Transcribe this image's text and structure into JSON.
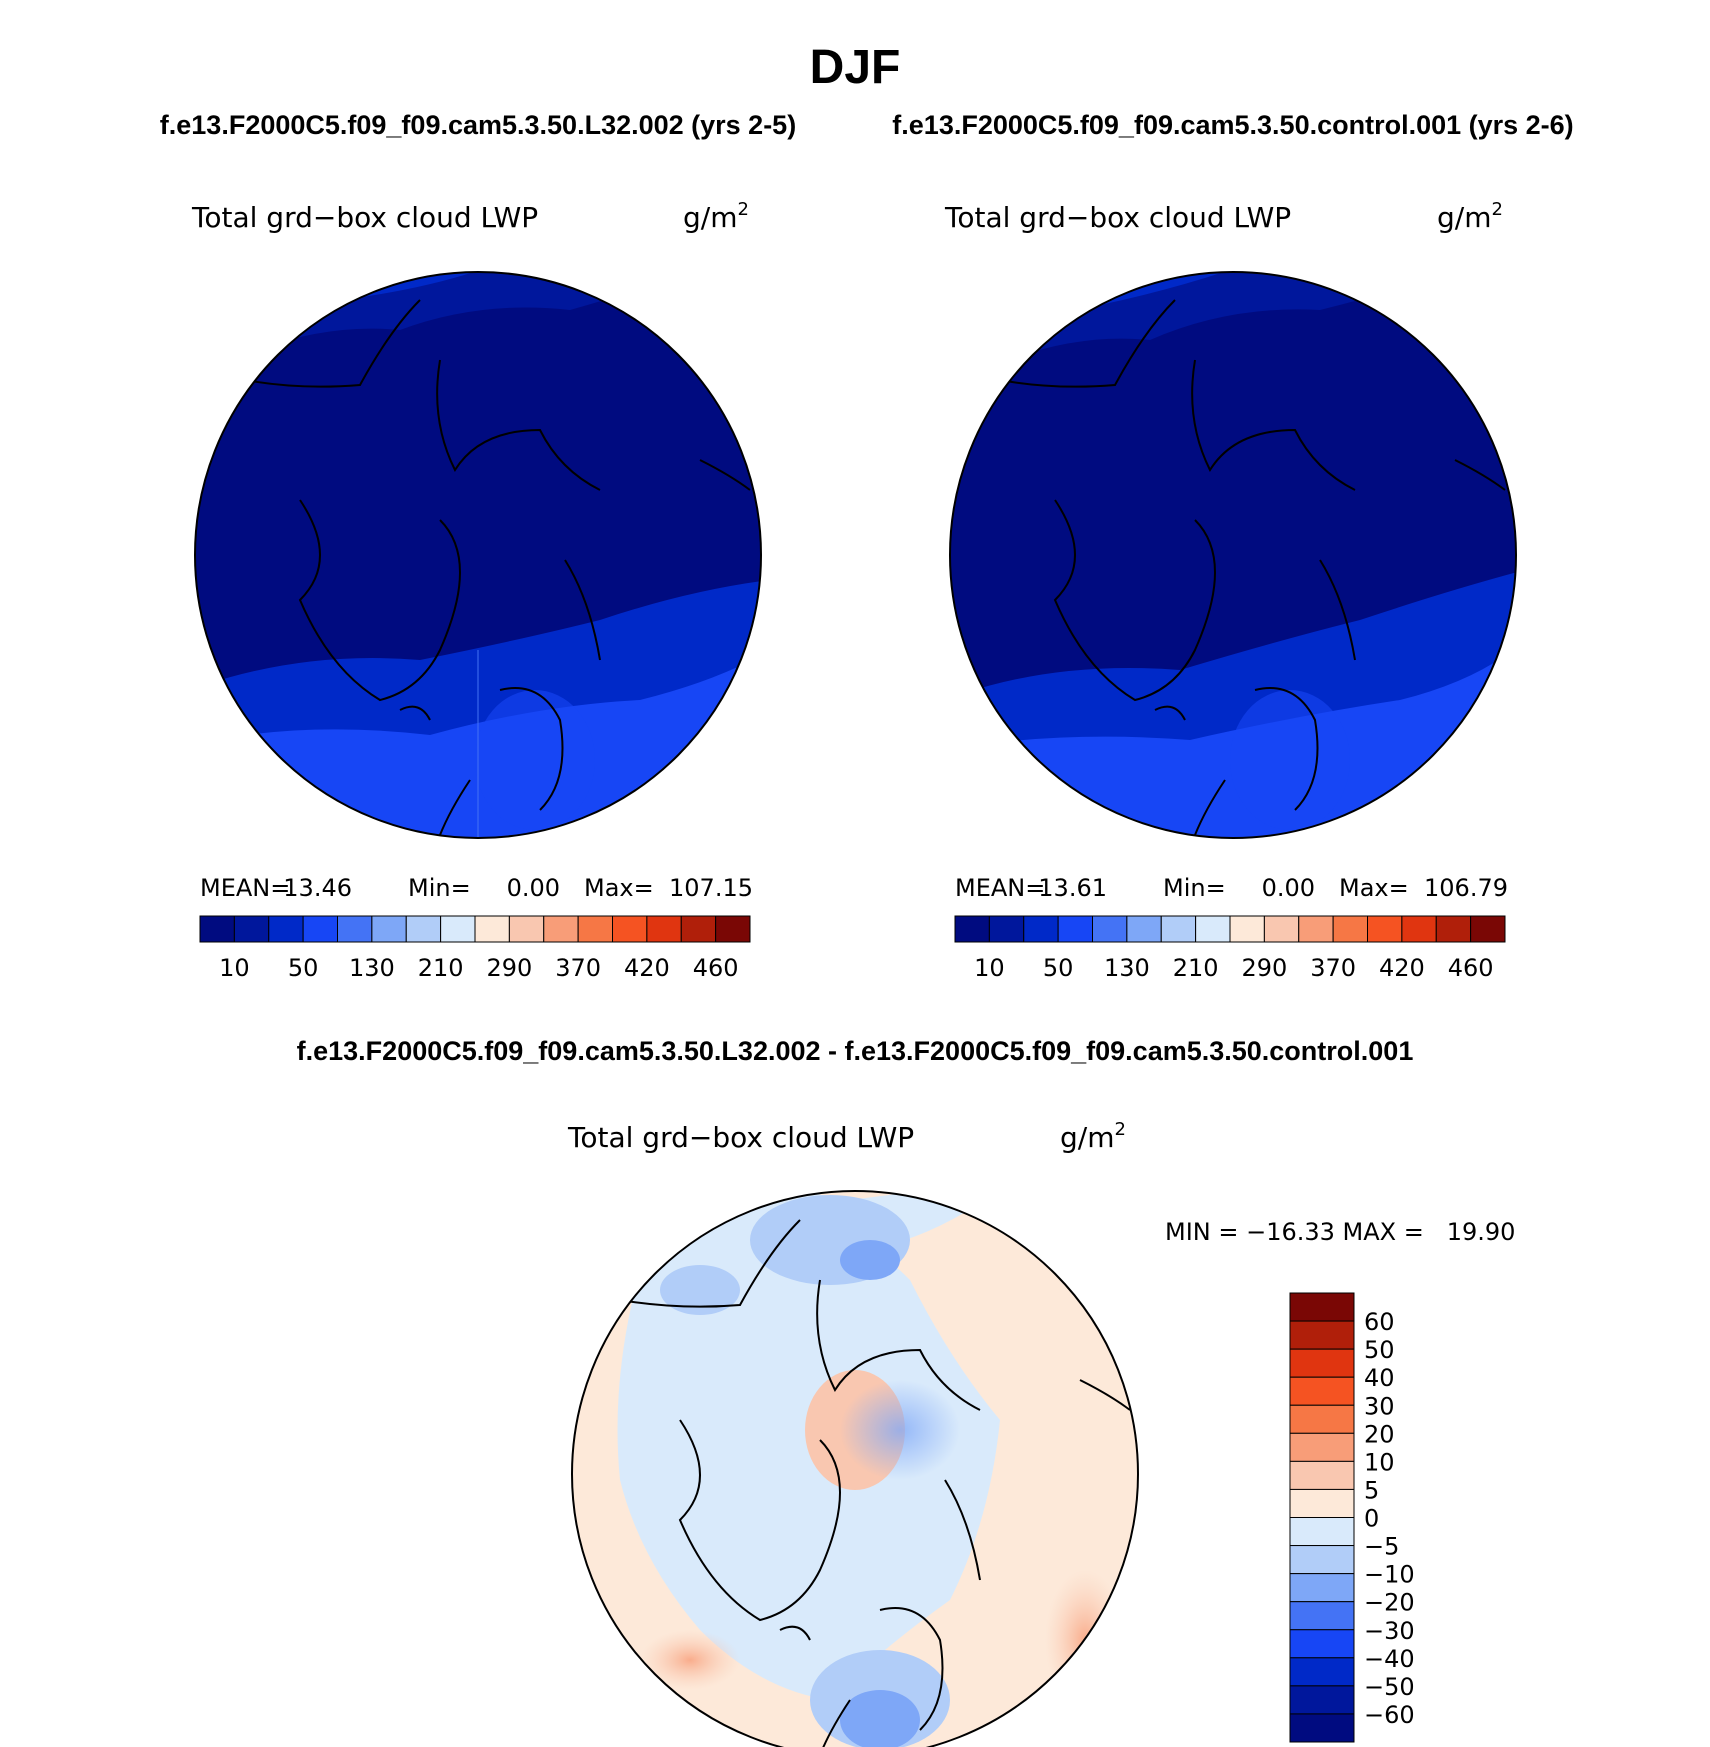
{
  "main_title": "DJF",
  "case1_title": "f.e13.F2000C5.f09_f09.cam5.3.50.L32.002 (yrs 2-5)",
  "case2_title": "f.e13.F2000C5.f09_f09.cam5.3.50.control.001 (yrs 2-6)",
  "diff_title": "f.e13.F2000C5.f09_f09.cam5.3.50.L32.002 - f.e13.F2000C5.f09_f09.cam5.3.50.control.001",
  "variable": "Total grd−box cloud LWP",
  "units": "g/m",
  "units_exp": "2",
  "chart_data": [
    {
      "type": "heatmap",
      "projection": "north polar stereographic",
      "title": "Total grd−box cloud LWP",
      "units": "g/m²",
      "stats": {
        "mean_label": "MEAN=",
        "mean": "13.46",
        "min_label": "Min=",
        "min": "0.00",
        "max_label": "Max=",
        "max": "107.15"
      },
      "levels": [
        10,
        50,
        130,
        210,
        290,
        370,
        420,
        460
      ],
      "tick_labels": [
        "10",
        "50",
        "130",
        "210",
        "290",
        "370",
        "420",
        "460"
      ],
      "palette": [
        "#000b80",
        "#00179c",
        "#0029c8",
        "#1746f5",
        "#4473f5",
        "#7ea7f7",
        "#b1cdf8",
        "#d9eafb",
        "#fde9d9",
        "#f9c7b0",
        "#f89d78",
        "#f67745",
        "#f55322",
        "#e03510",
        "#b01f0a",
        "#7a0705"
      ]
    },
    {
      "type": "heatmap",
      "projection": "north polar stereographic",
      "title": "Total grd−box cloud LWP",
      "units": "g/m²",
      "stats": {
        "mean_label": "MEAN=",
        "mean": "13.61",
        "min_label": "Min=",
        "min": "0.00",
        "max_label": "Max=",
        "max": "106.79"
      },
      "levels": [
        10,
        50,
        130,
        210,
        290,
        370,
        420,
        460
      ],
      "tick_labels": [
        "10",
        "50",
        "130",
        "210",
        "290",
        "370",
        "420",
        "460"
      ],
      "palette": [
        "#000b80",
        "#00179c",
        "#0029c8",
        "#1746f5",
        "#4473f5",
        "#7ea7f7",
        "#b1cdf8",
        "#d9eafb",
        "#fde9d9",
        "#f9c7b0",
        "#f89d78",
        "#f67745",
        "#f55322",
        "#e03510",
        "#b01f0a",
        "#7a0705"
      ]
    },
    {
      "type": "heatmap",
      "projection": "north polar stereographic",
      "title": "Total grd−box cloud LWP",
      "units": "g/m²",
      "stats_text": "MIN = −16.33 MAX =   19.90",
      "min": -16.33,
      "max": 19.9,
      "levels": [
        60,
        50,
        40,
        30,
        20,
        10,
        5,
        0,
        -5,
        -10,
        -20,
        -30,
        -40,
        -50,
        -60
      ],
      "tick_labels": [
        "60",
        "50",
        "40",
        "30",
        "20",
        "10",
        "5",
        "0",
        "−5",
        "−10",
        "−20",
        "−30",
        "−40",
        "−50",
        "−60"
      ],
      "palette_top_to_bottom": [
        "#7a0705",
        "#b01f0a",
        "#e03510",
        "#f55322",
        "#f67745",
        "#f89d78",
        "#f9c7b0",
        "#fde9d9",
        "#d9eafb",
        "#b1cdf8",
        "#7ea7f7",
        "#4473f5",
        "#1746f5",
        "#0029c8",
        "#00179c",
        "#000b80"
      ]
    }
  ]
}
